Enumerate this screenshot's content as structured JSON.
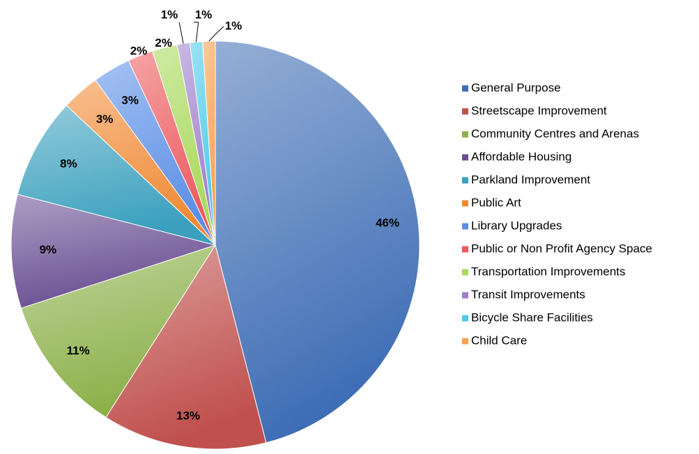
{
  "chart_data": {
    "type": "pie",
    "categories": [
      "General Purpose",
      "Streetscape Improvement",
      "Community Centres and Arenas",
      "Affordable Housing",
      "Parkland Improvement",
      "Public Art",
      "Library Upgrades",
      "Public or Non Profit Agency Space",
      "Transportation Improvements",
      "Transit Improvements",
      "Bicycle Share Facilities",
      "Child Care"
    ],
    "values": [
      46,
      13,
      11,
      9,
      8,
      3,
      3,
      2,
      2,
      1,
      1,
      1
    ],
    "value_labels": [
      "46%",
      "13%",
      "11%",
      "9%",
      "8%",
      "3%",
      "3%",
      "2%",
      "2%",
      "1%",
      "1%",
      "1%"
    ],
    "colors": [
      "#3e6db5",
      "#c0504d",
      "#8db04a",
      "#6a4f93",
      "#3aa0be",
      "#f08a36",
      "#5b8fe6",
      "#ec5a5e",
      "#a8d95a",
      "#9d7fcc",
      "#4ccaea",
      "#f7a04f"
    ],
    "legend": "right"
  }
}
